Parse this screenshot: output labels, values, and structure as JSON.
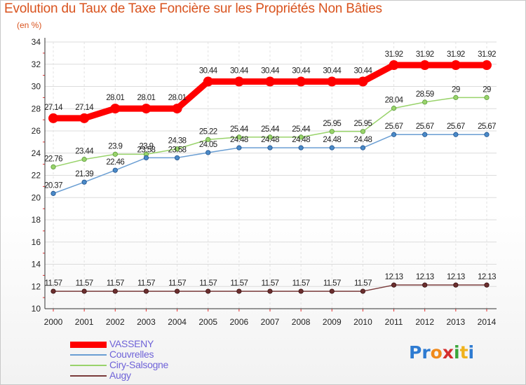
{
  "title": "Evolution du Taux de Taxe Foncière sur les Propriétés Non Bâties",
  "unit": "(en %)",
  "logo": {
    "text": "Proxiti",
    "colors": [
      "#2e7bd1",
      "#2e7bd1",
      "#f08a1c",
      "#d42e2e",
      "#3aa63a",
      "#f0b21c",
      "#2e7bd1"
    ]
  },
  "chart_data": {
    "type": "line",
    "title": "Evolution du Taux de Taxe Foncière sur les Propriétés Non Bâties",
    "ylabel": "(en %)",
    "xlabel": "",
    "ylim": [
      10,
      34
    ],
    "yticks": [
      "10",
      "12",
      "14",
      "16",
      "18",
      "20",
      "22",
      "24",
      "26",
      "28",
      "30",
      "32",
      "34"
    ],
    "categories": [
      "2000",
      "2001",
      "2002",
      "2003",
      "2004",
      "2005",
      "2006",
      "2007",
      "2008",
      "2009",
      "2010",
      "2011",
      "2012",
      "2013",
      "2014"
    ],
    "series": [
      {
        "name": "VASSENY",
        "color": "#ff0000",
        "values": [
          27.14,
          27.14,
          28.01,
          28.01,
          28.01,
          30.44,
          30.44,
          30.44,
          30.44,
          30.44,
          30.44,
          31.92,
          31.92,
          31.92,
          31.92
        ],
        "labels": [
          "27.14",
          "27.14",
          "28.01",
          "28.01",
          "28.01",
          "30.44",
          "30.44",
          "30.44",
          "30.44",
          "30.44",
          "30.44",
          "31.92",
          "31.92",
          "31.92",
          "31.92"
        ]
      },
      {
        "name": "Couvrelles",
        "color": "#6a9ed3",
        "values": [
          20.37,
          21.39,
          22.46,
          23.58,
          23.58,
          24.05,
          24.48,
          24.48,
          24.48,
          24.48,
          24.48,
          25.67,
          25.67,
          25.67,
          25.67
        ],
        "labels": [
          "20.37",
          "21.39",
          "22.46",
          "23.58",
          "23.58",
          "24.05",
          "24.48",
          "24.48",
          "24.48",
          "24.48",
          "24.48",
          "25.67",
          "25.67",
          "25.67",
          "25.67"
        ]
      },
      {
        "name": "Ciry-Salsogne",
        "color": "#99d36b",
        "values": [
          22.76,
          23.44,
          23.9,
          23.9,
          24.38,
          25.22,
          25.44,
          25.44,
          25.44,
          25.95,
          25.95,
          28.04,
          28.59,
          29,
          29
        ],
        "labels": [
          "22.76",
          "23.44",
          "23.9",
          "23.9",
          "24.38",
          "25.22",
          "25.44",
          "25.44",
          "25.44",
          "25.95",
          "25.95",
          "28.04",
          "28.59",
          "29",
          "29"
        ]
      },
      {
        "name": "Augy",
        "color": "#7a3b3b",
        "values": [
          11.57,
          11.57,
          11.57,
          11.57,
          11.57,
          11.57,
          11.57,
          11.57,
          11.57,
          11.57,
          11.57,
          12.13,
          12.13,
          12.13,
          12.13
        ],
        "labels": [
          "11.57",
          "11.57",
          "11.57",
          "11.57",
          "11.57",
          "11.57",
          "11.57",
          "11.57",
          "11.57",
          "11.57",
          "11.57",
          "12.13",
          "12.13",
          "12.13",
          "12.13"
        ]
      }
    ]
  }
}
